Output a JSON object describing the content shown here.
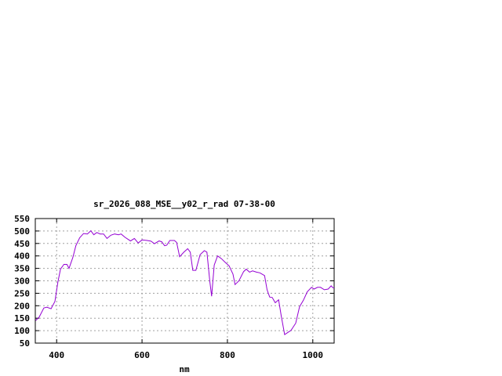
{
  "chart_data": {
    "type": "line",
    "title": "sr_2026_088_MSE__y02_r_rad 07-38-00",
    "xlabel": "nm",
    "ylabel": "",
    "xlim": [
      350,
      1050
    ],
    "ylim": [
      50,
      550
    ],
    "xticks": [
      400,
      600,
      800,
      1000
    ],
    "yticks": [
      50,
      100,
      150,
      200,
      250,
      300,
      350,
      400,
      450,
      500,
      550
    ],
    "grid": true,
    "line_color": "#9400d3",
    "series": [
      {
        "x": [
          351,
          359,
          370,
          377,
          387,
          396,
          403,
          409,
          417,
          424,
          429,
          438,
          445,
          454,
          463,
          472,
          480,
          487,
          494,
          502,
          510,
          518,
          527,
          536,
          545,
          551,
          560,
          573,
          582,
          591,
          600,
          612,
          621,
          629,
          640,
          646,
          653,
          658,
          665,
          676,
          681,
          688,
          698,
          707,
          713,
          719,
          726,
          736,
          746,
          752,
          759,
          763,
          769,
          777,
          786,
          795,
          804,
          813,
          818,
          827,
          838,
          844,
          852,
          859,
          868,
          876,
          887,
          893,
          899,
          905,
          912,
          920,
          926,
          934,
          941,
          949,
          960,
          969,
          978,
          987,
          997,
          1003,
          1011,
          1018,
          1027,
          1036,
          1043,
          1047,
          1050
        ],
        "y": [
          141,
          154,
          191,
          194,
          188,
          217,
          295,
          347,
          366,
          366,
          350,
          394,
          441,
          473,
          490,
          488,
          501,
          485,
          494,
          488,
          488,
          470,
          483,
          488,
          485,
          488,
          475,
          460,
          470,
          452,
          464,
          462,
          459,
          449,
          460,
          457,
          441,
          443,
          462,
          462,
          454,
          397,
          415,
          429,
          415,
          342,
          342,
          405,
          421,
          415,
          295,
          238,
          363,
          400,
          389,
          374,
          360,
          327,
          285,
          300,
          337,
          347,
          335,
          340,
          335,
          332,
          321,
          264,
          235,
          233,
          212,
          224,
          160,
          84,
          92,
          101,
          130,
          196,
          222,
          256,
          274,
          267,
          274,
          274,
          264,
          267,
          280,
          272,
          272
        ]
      }
    ]
  }
}
